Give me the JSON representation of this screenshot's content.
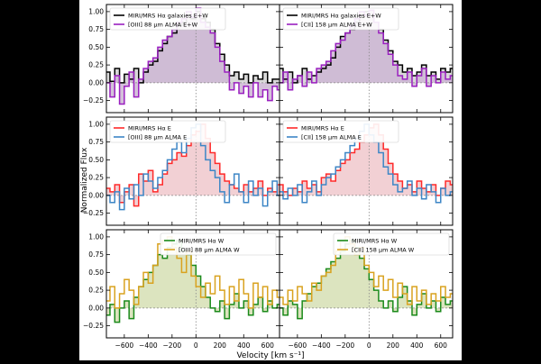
{
  "figure": {
    "ylabel": "Normalized Flux",
    "xlabel": "Velocity [km s⁻¹]",
    "x_ticks": [
      "−600",
      "−400",
      "−200",
      "0",
      "200",
      "400",
      "600"
    ],
    "y_ticks": [
      "1.00",
      "0.75",
      "0.50",
      "0.25",
      "0.00",
      "−0.25"
    ]
  },
  "colors": {
    "black": "#000000",
    "purple": "#9a1fc0",
    "red": "#ff2a2a",
    "blue": "#3d86c6",
    "green": "#1a8a1a",
    "gold": "#d9a21f",
    "fill_purple": "#cdb6d4",
    "fill_gray": "#d2d2d2",
    "fill_red": "#f0c8cc",
    "fill_green": "#d6dfb4"
  },
  "chart_data": [
    {
      "type": "line",
      "row": 0,
      "col": 0,
      "xlim": [
        -750,
        700
      ],
      "ylim": [
        -0.42,
        1.1
      ],
      "legend": "top-left",
      "series": [
        {
          "name": "MIRI/MRS Hα galaxies E+W",
          "color": "black",
          "fill": "fill_gray",
          "style": "step",
          "x": [
            -740,
            -700,
            -660,
            -620,
            -580,
            -540,
            -500,
            -460,
            -420,
            -380,
            -340,
            -300,
            -260,
            -220,
            -180,
            -140,
            -100,
            -60,
            -20,
            20,
            60,
            100,
            140,
            180,
            220,
            260,
            300,
            340,
            380,
            420,
            460,
            500,
            540,
            580,
            620,
            660,
            700
          ],
          "y": [
            0.15,
            0.02,
            0.2,
            0.0,
            0.12,
            0.05,
            0.2,
            0.0,
            0.15,
            0.25,
            0.3,
            0.45,
            0.55,
            0.65,
            0.7,
            0.8,
            0.85,
            0.95,
            0.9,
            1.0,
            0.9,
            0.85,
            0.75,
            0.55,
            0.4,
            0.25,
            0.1,
            0.15,
            0.05,
            0.12,
            0.0,
            0.1,
            0.05,
            0.15,
            0.0,
            0.05,
            0.05
          ]
        },
        {
          "name": "[OIII] 88 μm ALMA E+W",
          "color": "purple",
          "fill": "fill_purple",
          "style": "step",
          "x": [
            -740,
            -700,
            -660,
            -620,
            -580,
            -540,
            -500,
            -460,
            -420,
            -380,
            -340,
            -300,
            -260,
            -220,
            -180,
            -140,
            -100,
            -60,
            -20,
            20,
            60,
            100,
            140,
            180,
            220,
            260,
            300,
            340,
            380,
            420,
            460,
            500,
            540,
            580,
            620,
            660,
            700
          ],
          "y": [
            0.0,
            -0.2,
            0.1,
            -0.3,
            -0.05,
            0.15,
            -0.2,
            0.05,
            0.2,
            0.3,
            0.35,
            0.5,
            0.6,
            0.65,
            0.75,
            0.85,
            0.9,
            1.0,
            0.92,
            1.05,
            0.85,
            0.78,
            0.7,
            0.5,
            0.3,
            0.15,
            -0.1,
            0.0,
            -0.15,
            -0.05,
            -0.2,
            0.0,
            -0.2,
            -0.1,
            -0.25,
            -0.05,
            -0.1
          ]
        }
      ]
    },
    {
      "type": "line",
      "row": 0,
      "col": 1,
      "xlim": [
        -750,
        700
      ],
      "ylim": [
        -0.42,
        1.1
      ],
      "legend": "top-left",
      "series": [
        {
          "name": "MIRI/MRS Hα galaxies E+W",
          "color": "black",
          "fill": "fill_gray",
          "style": "step",
          "x": [
            -740,
            -700,
            -660,
            -620,
            -580,
            -540,
            -500,
            -460,
            -420,
            -380,
            -340,
            -300,
            -260,
            -220,
            -180,
            -140,
            -100,
            -60,
            -20,
            20,
            60,
            100,
            140,
            180,
            220,
            260,
            300,
            340,
            380,
            420,
            460,
            500,
            540,
            580,
            620,
            660,
            700
          ],
          "y": [
            0.2,
            0.05,
            0.15,
            0.0,
            0.1,
            0.2,
            0.05,
            0.1,
            0.15,
            0.2,
            0.25,
            0.35,
            0.5,
            0.65,
            0.7,
            0.75,
            0.85,
            0.92,
            1.0,
            0.95,
            0.85,
            0.75,
            0.6,
            0.45,
            0.3,
            0.25,
            0.15,
            0.2,
            0.1,
            0.15,
            0.25,
            0.1,
            0.15,
            0.05,
            0.2,
            0.15,
            0.2
          ]
        },
        {
          "name": "[CII] 158 μm ALMA E+W",
          "color": "purple",
          "fill": "fill_purple",
          "style": "step",
          "x": [
            -740,
            -700,
            -660,
            -620,
            -580,
            -540,
            -500,
            -460,
            -420,
            -380,
            -340,
            -300,
            -260,
            -220,
            -180,
            -140,
            -100,
            -60,
            -20,
            20,
            60,
            100,
            140,
            180,
            220,
            260,
            300,
            340,
            380,
            420,
            460,
            500,
            540,
            580,
            620,
            660,
            700
          ],
          "y": [
            0.0,
            0.15,
            -0.1,
            0.05,
            0.1,
            -0.05,
            0.15,
            0.0,
            0.2,
            0.25,
            0.3,
            0.45,
            0.55,
            0.6,
            0.7,
            0.8,
            0.9,
            1.0,
            0.95,
            1.02,
            0.85,
            0.7,
            0.55,
            0.4,
            0.25,
            0.1,
            0.05,
            0.15,
            -0.05,
            0.1,
            0.2,
            -0.05,
            0.1,
            0.0,
            0.15,
            0.05,
            0.1
          ]
        }
      ]
    },
    {
      "type": "line",
      "row": 1,
      "col": 0,
      "xlim": [
        -750,
        700
      ],
      "ylim": [
        -0.42,
        1.1
      ],
      "legend": "top-left",
      "series": [
        {
          "name": "MIRI/MRS Hα E",
          "color": "red",
          "fill": "fill_red",
          "style": "step",
          "x": [
            -740,
            -700,
            -660,
            -620,
            -580,
            -540,
            -500,
            -460,
            -420,
            -380,
            -340,
            -300,
            -260,
            -220,
            -180,
            -140,
            -100,
            -60,
            -20,
            20,
            60,
            100,
            140,
            180,
            220,
            260,
            300,
            340,
            380,
            420,
            460,
            500,
            540,
            580,
            620,
            660,
            700
          ],
          "y": [
            0.1,
            0.05,
            0.15,
            -0.1,
            0.05,
            0.15,
            -0.15,
            0.3,
            0.2,
            0.35,
            0.05,
            0.15,
            0.3,
            0.45,
            0.5,
            0.6,
            0.55,
            0.7,
            0.85,
            0.9,
            1.0,
            0.8,
            0.6,
            0.45,
            0.3,
            0.2,
            0.15,
            0.1,
            0.05,
            0.15,
            0.05,
            0.1,
            0.2,
            0.0,
            0.1,
            0.05,
            0.15
          ]
        },
        {
          "name": "[OIII] 88 μm ALMA E",
          "color": "blue",
          "fill": null,
          "style": "step",
          "x": [
            -740,
            -700,
            -660,
            -620,
            -580,
            -540,
            -500,
            -460,
            -420,
            -380,
            -340,
            -300,
            -260,
            -220,
            -180,
            -140,
            -100,
            -60,
            -20,
            20,
            60,
            100,
            140,
            180,
            220,
            260,
            300,
            340,
            380,
            420,
            460,
            500,
            540,
            580,
            620,
            660,
            700
          ],
          "y": [
            0.0,
            -0.1,
            0.05,
            -0.2,
            0.1,
            -0.05,
            0.15,
            0.0,
            0.3,
            0.2,
            0.1,
            0.25,
            0.35,
            0.5,
            0.65,
            0.75,
            0.6,
            0.8,
            0.95,
            1.0,
            0.7,
            0.5,
            0.35,
            0.25,
            0.05,
            -0.1,
            0.15,
            0.3,
            0.05,
            -0.1,
            0.2,
            0.0,
            0.1,
            -0.15,
            0.05,
            0.2,
            0.0
          ]
        }
      ]
    },
    {
      "type": "line",
      "row": 1,
      "col": 1,
      "xlim": [
        -750,
        700
      ],
      "ylim": [
        -0.42,
        1.1
      ],
      "legend": "top-left",
      "series": [
        {
          "name": "MIRI/MRS Hα E",
          "color": "red",
          "fill": "fill_red",
          "style": "step",
          "x": [
            -740,
            -700,
            -660,
            -620,
            -580,
            -540,
            -500,
            -460,
            -420,
            -380,
            -340,
            -300,
            -260,
            -220,
            -180,
            -140,
            -100,
            -60,
            -20,
            20,
            60,
            100,
            140,
            180,
            220,
            260,
            300,
            340,
            380,
            420,
            460,
            500,
            540,
            580,
            620,
            660,
            700
          ],
          "y": [
            0.15,
            0.05,
            0.0,
            0.1,
            0.05,
            0.2,
            0.1,
            0.15,
            0.05,
            0.25,
            0.3,
            0.2,
            0.35,
            0.45,
            0.5,
            0.6,
            0.65,
            0.75,
            0.85,
            0.95,
            1.0,
            0.85,
            0.65,
            0.45,
            0.3,
            0.2,
            0.1,
            0.15,
            0.05,
            0.2,
            0.1,
            0.05,
            0.15,
            0.0,
            0.1,
            0.2,
            0.15
          ]
        },
        {
          "name": "[CII] 158 μm ALMA E",
          "color": "blue",
          "fill": null,
          "style": "step",
          "x": [
            -740,
            -700,
            -660,
            -620,
            -580,
            -540,
            -500,
            -460,
            -420,
            -380,
            -340,
            -300,
            -260,
            -220,
            -180,
            -140,
            -100,
            -60,
            -20,
            20,
            60,
            100,
            140,
            180,
            220,
            260,
            300,
            340,
            380,
            420,
            460,
            500,
            540,
            580,
            620,
            660,
            700
          ],
          "y": [
            0.05,
            -0.05,
            0.1,
            0.0,
            0.15,
            -0.1,
            0.05,
            0.2,
            0.0,
            0.15,
            0.25,
            0.3,
            0.4,
            0.5,
            0.6,
            0.7,
            0.8,
            0.9,
            1.0,
            0.85,
            0.75,
            0.6,
            0.4,
            0.3,
            0.15,
            0.05,
            0.1,
            0.2,
            0.0,
            0.1,
            -0.05,
            0.15,
            0.05,
            -0.1,
            0.1,
            0.0,
            0.05
          ]
        }
      ]
    },
    {
      "type": "line",
      "row": 2,
      "col": 0,
      "xlim": [
        -750,
        700
      ],
      "ylim": [
        -0.42,
        1.1
      ],
      "legend": "top-right",
      "series": [
        {
          "name": "MIRI/MRS Hα W",
          "color": "green",
          "fill": "fill_green",
          "style": "step",
          "x": [
            -740,
            -700,
            -660,
            -620,
            -580,
            -540,
            -500,
            -460,
            -420,
            -380,
            -340,
            -300,
            -260,
            -220,
            -180,
            -140,
            -100,
            -60,
            -20,
            20,
            60,
            100,
            140,
            180,
            220,
            260,
            300,
            340,
            380,
            420,
            460,
            500,
            540,
            580,
            620,
            660,
            700
          ],
          "y": [
            -0.1,
            0.05,
            -0.2,
            0.0,
            0.1,
            -0.15,
            0.15,
            0.3,
            0.4,
            0.5,
            0.6,
            0.75,
            0.7,
            0.85,
            0.9,
            0.95,
            0.8,
            0.75,
            0.6,
            0.45,
            0.3,
            0.15,
            0.0,
            -0.05,
            0.1,
            -0.15,
            0.05,
            0.2,
            0.0,
            0.1,
            -0.1,
            0.05,
            0.15,
            -0.05,
            0.1,
            0.0,
            0.05
          ]
        },
        {
          "name": "[OIII] 88 μm ALMA W",
          "color": "gold",
          "fill": null,
          "style": "step",
          "x": [
            -740,
            -700,
            -660,
            -620,
            -580,
            -540,
            -500,
            -460,
            -420,
            -380,
            -340,
            -300,
            -260,
            -220,
            -180,
            -140,
            -100,
            -60,
            -20,
            20,
            60,
            100,
            140,
            180,
            220,
            260,
            300,
            340,
            380,
            420,
            460,
            500,
            540,
            580,
            620,
            660,
            700
          ],
          "y": [
            0.1,
            0.3,
            0.0,
            0.2,
            0.4,
            0.25,
            0.05,
            0.3,
            0.5,
            0.35,
            0.6,
            0.9,
            0.95,
            1.0,
            0.85,
            0.7,
            0.5,
            0.8,
            0.45,
            0.3,
            0.15,
            0.35,
            0.2,
            0.45,
            0.25,
            0.05,
            0.3,
            0.1,
            0.4,
            0.2,
            0.0,
            0.35,
            0.15,
            0.3,
            0.05,
            0.25,
            0.15
          ]
        }
      ]
    },
    {
      "type": "line",
      "row": 2,
      "col": 1,
      "xlim": [
        -750,
        700
      ],
      "ylim": [
        -0.42,
        1.1
      ],
      "legend": "top-right",
      "series": [
        {
          "name": "MIRI/MRS Hα W",
          "color": "green",
          "fill": "fill_green",
          "style": "step",
          "x": [
            -740,
            -700,
            -660,
            -620,
            -580,
            -540,
            -500,
            -460,
            -420,
            -380,
            -340,
            -300,
            -260,
            -220,
            -180,
            -140,
            -100,
            -60,
            -20,
            20,
            60,
            100,
            140,
            180,
            220,
            260,
            300,
            340,
            380,
            420,
            460,
            500,
            540,
            580,
            620,
            660,
            700
          ],
          "y": [
            0.0,
            -0.1,
            0.1,
            0.05,
            -0.15,
            0.1,
            0.2,
            0.3,
            0.35,
            0.45,
            0.55,
            0.65,
            0.7,
            0.8,
            0.9,
            0.95,
            0.85,
            0.7,
            0.55,
            0.4,
            0.25,
            0.1,
            0.0,
            0.1,
            -0.05,
            0.15,
            0.3,
            0.1,
            -0.1,
            0.05,
            0.2,
            0.0,
            0.1,
            -0.05,
            0.15,
            0.05,
            0.1
          ]
        },
        {
          "name": "[CII] 158 μm ALMA W",
          "color": "gold",
          "fill": null,
          "style": "step",
          "x": [
            -740,
            -700,
            -660,
            -620,
            -580,
            -540,
            -500,
            -460,
            -420,
            -380,
            -340,
            -300,
            -260,
            -220,
            -180,
            -140,
            -100,
            -60,
            -20,
            20,
            60,
            100,
            140,
            180,
            220,
            260,
            300,
            340,
            380,
            420,
            460,
            500,
            540,
            580,
            620,
            660,
            700
          ],
          "y": [
            0.15,
            0.05,
            0.25,
            0.1,
            0.3,
            0.2,
            0.1,
            0.35,
            0.25,
            0.45,
            0.5,
            0.6,
            0.8,
            0.95,
            1.0,
            0.9,
            0.75,
            0.85,
            0.6,
            0.5,
            0.3,
            0.45,
            0.25,
            0.4,
            0.15,
            0.35,
            0.2,
            0.05,
            0.3,
            0.1,
            0.25,
            0.05,
            0.2,
            0.1,
            0.3,
            0.15,
            0.2
          ]
        }
      ]
    }
  ]
}
